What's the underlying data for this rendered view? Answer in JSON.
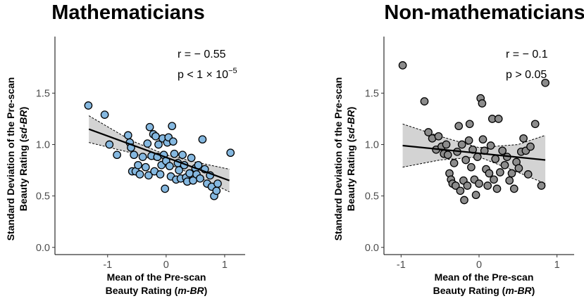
{
  "chart_data": [
    {
      "type": "scatter",
      "id": "math",
      "title": "Mathematicians",
      "xlabel_line1": "Mean of the Pre-scan",
      "xlabel_line2_pre": "Beauty Rating (",
      "xlabel_line2_em": "m-BR",
      "xlabel_line2_post": ")",
      "ylabel_line1_pre": "Standard Deviation of the Pre-scan",
      "ylabel_line2_pre": "Beauty Rating (",
      "ylabel_line2_em": "sd-BR",
      "ylabel_line2_post": ")",
      "xlim": [
        -1.9,
        1.35
      ],
      "ylim": [
        -0.07,
        2.05
      ],
      "xticks": [
        -1,
        0,
        1
      ],
      "xtick_labels": [
        "-1",
        "0",
        "1"
      ],
      "yticks": [
        0.0,
        0.5,
        1.0,
        1.5
      ],
      "ytick_labels": [
        "0.0",
        "0.5",
        "1.0",
        "1.5"
      ],
      "stat_r": "r = − 0.55",
      "stat_p_pre": "p < 1 × 10",
      "stat_p_sup": "−5",
      "point_color": "#85b8e0",
      "band_color": "#d3d3d3",
      "fit": {
        "x0": -1.32,
        "y0": 1.15,
        "x1": 1.08,
        "y1": 0.65
      },
      "ci_upper": [
        [
          -1.32,
          1.28
        ],
        [
          -0.6,
          1.04
        ],
        [
          0.0,
          0.9
        ],
        [
          0.5,
          0.83
        ],
        [
          1.08,
          0.76
        ]
      ],
      "ci_lower": [
        [
          -1.32,
          1.02
        ],
        [
          -0.6,
          0.92
        ],
        [
          0.0,
          0.82
        ],
        [
          0.5,
          0.7
        ],
        [
          1.08,
          0.54
        ]
      ],
      "points": [
        [
          -1.33,
          1.38
        ],
        [
          -1.05,
          1.29
        ],
        [
          -0.97,
          1.0
        ],
        [
          -0.84,
          0.9
        ],
        [
          -0.65,
          1.09
        ],
        [
          -0.62,
          1.02
        ],
        [
          -0.6,
          0.97
        ],
        [
          -0.58,
          0.74
        ],
        [
          -0.55,
          0.9
        ],
        [
          -0.52,
          0.74
        ],
        [
          -0.48,
          0.8
        ],
        [
          -0.45,
          0.71
        ],
        [
          -0.4,
          0.88
        ],
        [
          -0.35,
          0.78
        ],
        [
          -0.32,
          1.01
        ],
        [
          -0.3,
          0.7
        ],
        [
          -0.28,
          1.17
        ],
        [
          -0.25,
          0.89
        ],
        [
          -0.22,
          1.1
        ],
        [
          -0.2,
          0.74
        ],
        [
          -0.18,
          1.08
        ],
        [
          -0.15,
          0.88
        ],
        [
          -0.13,
          1.0
        ],
        [
          -0.1,
          0.71
        ],
        [
          -0.08,
          0.8
        ],
        [
          -0.06,
          1.06
        ],
        [
          -0.04,
          0.9
        ],
        [
          -0.02,
          0.57
        ],
        [
          0.0,
          0.84
        ],
        [
          0.02,
          1.02
        ],
        [
          0.04,
          1.07
        ],
        [
          0.06,
          0.79
        ],
        [
          0.08,
          0.69
        ],
        [
          0.1,
          1.18
        ],
        [
          0.12,
          1.03
        ],
        [
          0.14,
          0.91
        ],
        [
          0.17,
          0.66
        ],
        [
          0.2,
          0.82
        ],
        [
          0.22,
          0.75
        ],
        [
          0.25,
          0.67
        ],
        [
          0.28,
          0.9
        ],
        [
          0.31,
          0.8
        ],
        [
          0.34,
          0.68
        ],
        [
          0.36,
          0.64
        ],
        [
          0.4,
          0.72
        ],
        [
          0.43,
          0.87
        ],
        [
          0.46,
          0.65
        ],
        [
          0.5,
          0.77
        ],
        [
          0.52,
          0.71
        ],
        [
          0.55,
          0.8
        ],
        [
          0.58,
          0.67
        ],
        [
          0.62,
          1.05
        ],
        [
          0.66,
          0.76
        ],
        [
          0.7,
          0.62
        ],
        [
          0.75,
          0.7
        ],
        [
          0.78,
          0.59
        ],
        [
          0.82,
          0.5
        ],
        [
          0.86,
          0.55
        ],
        [
          0.88,
          0.62
        ],
        [
          1.1,
          0.92
        ]
      ]
    },
    {
      "type": "scatter",
      "id": "nonmath",
      "title": "Non-mathematicians",
      "xlabel_line1": "Mean of the Pre-scan",
      "xlabel_line2_pre": "Beauty Rating (",
      "xlabel_line2_em": "m-BR",
      "xlabel_line2_post": ")",
      "ylabel_line1_pre": "Standard Deviation of the Pre-scan",
      "ylabel_line2_pre": "Beauty Rating (",
      "ylabel_line2_em": "sd-BR",
      "ylabel_line2_post": ")",
      "xlim": [
        -1.22,
        1.22
      ],
      "ylim": [
        -0.07,
        2.05
      ],
      "xticks": [
        -1,
        0,
        1
      ],
      "xtick_labels": [
        "-1",
        "0",
        "1"
      ],
      "yticks": [
        0.0,
        0.5,
        1.0,
        1.5
      ],
      "ytick_labels": [
        "0.0",
        "0.5",
        "1.0",
        "1.5"
      ],
      "stat_r": "r = − 0.1",
      "stat_p_pre": "p > 0.05",
      "stat_p_sup": "",
      "point_color": "#8c8c8c",
      "band_color": "#d3d3d3",
      "fit": {
        "x0": -0.98,
        "y0": 0.99,
        "x1": 0.85,
        "y1": 0.85
      },
      "ci_upper": [
        [
          -0.98,
          1.2
        ],
        [
          -0.5,
          1.08
        ],
        [
          0.0,
          0.97
        ],
        [
          0.5,
          1.0
        ],
        [
          0.85,
          1.09
        ]
      ],
      "ci_lower": [
        [
          -0.98,
          0.78
        ],
        [
          -0.5,
          0.85
        ],
        [
          0.0,
          0.88
        ],
        [
          0.5,
          0.73
        ],
        [
          0.85,
          0.62
        ]
      ],
      "points": [
        [
          -0.98,
          1.77
        ],
        [
          -0.7,
          1.42
        ],
        [
          -0.65,
          1.12
        ],
        [
          -0.6,
          1.06
        ],
        [
          -0.55,
          0.95
        ],
        [
          -0.52,
          1.08
        ],
        [
          -0.48,
          0.98
        ],
        [
          -0.45,
          0.91
        ],
        [
          -0.42,
          1.0
        ],
        [
          -0.4,
          0.9
        ],
        [
          -0.38,
          0.72
        ],
        [
          -0.36,
          0.66
        ],
        [
          -0.34,
          0.62
        ],
        [
          -0.32,
          0.82
        ],
        [
          -0.3,
          0.6
        ],
        [
          -0.28,
          0.93
        ],
        [
          -0.26,
          1.18
        ],
        [
          -0.24,
          0.55
        ],
        [
          -0.22,
          1.0
        ],
        [
          -0.2,
          0.65
        ],
        [
          -0.19,
          0.46
        ],
        [
          -0.17,
          0.85
        ],
        [
          -0.15,
          0.6
        ],
        [
          -0.13,
          1.04
        ],
        [
          -0.12,
          1.2
        ],
        [
          -0.1,
          0.78
        ],
        [
          -0.08,
          0.95
        ],
        [
          -0.06,
          0.66
        ],
        [
          -0.04,
          0.51
        ],
        [
          -0.02,
          0.88
        ],
        [
          0.0,
          0.62
        ],
        [
          0.02,
          1.45
        ],
        [
          0.04,
          1.4
        ],
        [
          0.05,
          1.05
        ],
        [
          0.07,
          0.94
        ],
        [
          0.09,
          0.76
        ],
        [
          0.11,
          0.6
        ],
        [
          0.13,
          0.72
        ],
        [
          0.15,
          0.99
        ],
        [
          0.17,
          1.25
        ],
        [
          0.19,
          0.66
        ],
        [
          0.21,
          0.86
        ],
        [
          0.23,
          0.57
        ],
        [
          0.25,
          1.25
        ],
        [
          0.27,
          0.73
        ],
        [
          0.3,
          0.94
        ],
        [
          0.33,
          0.8
        ],
        [
          0.36,
          0.88
        ],
        [
          0.39,
          0.65
        ],
        [
          0.42,
          0.72
        ],
        [
          0.45,
          0.57
        ],
        [
          0.48,
          0.83
        ],
        [
          0.51,
          0.77
        ],
        [
          0.54,
          0.93
        ],
        [
          0.57,
          1.06
        ],
        [
          0.6,
          0.94
        ],
        [
          0.63,
          0.71
        ],
        [
          0.66,
          0.98
        ],
        [
          0.72,
          1.2
        ],
        [
          0.8,
          0.6
        ],
        [
          0.85,
          1.6
        ]
      ]
    }
  ]
}
